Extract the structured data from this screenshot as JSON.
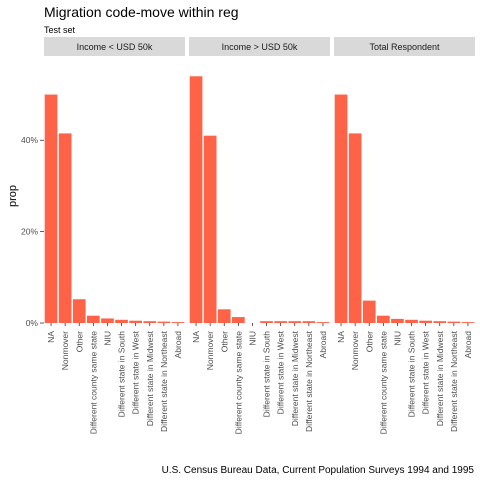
{
  "chart_data": {
    "type": "bar",
    "title": "Migration code-move within reg",
    "subtitle": "Test set",
    "ylabel": "prop",
    "caption": "U.S. Census Bureau Data, Current Population Surveys 1994 and 1995",
    "ylim": [
      0,
      0.58
    ],
    "yticks": [
      {
        "value": 0,
        "label": "0%"
      },
      {
        "value": 0.2,
        "label": "20%"
      },
      {
        "value": 0.4,
        "label": "40%"
      }
    ],
    "grid": false,
    "colors": {
      "bar": "#ff6347",
      "strip": "#d9d9d9"
    },
    "categories": [
      "NA",
      "Nonmover",
      "Other",
      "Different county same state",
      "NIU",
      "Different state in South",
      "Different state in West",
      "Different state in Midwest",
      "Different state in Northeast",
      "Abroad"
    ],
    "panels": [
      {
        "name": "Income < USD 50k",
        "values": [
          0.5,
          0.415,
          0.052,
          0.016,
          0.01,
          0.007,
          0.005,
          0.004,
          0.003,
          0.002
        ]
      },
      {
        "name": "Income > USD 50k",
        "values": [
          0.54,
          0.41,
          0.03,
          0.013,
          0.0,
          0.004,
          0.004,
          0.004,
          0.004,
          0.002
        ]
      },
      {
        "name": "Total Respondent",
        "values": [
          0.5,
          0.415,
          0.049,
          0.016,
          0.009,
          0.007,
          0.005,
          0.004,
          0.003,
          0.002
        ]
      }
    ]
  }
}
